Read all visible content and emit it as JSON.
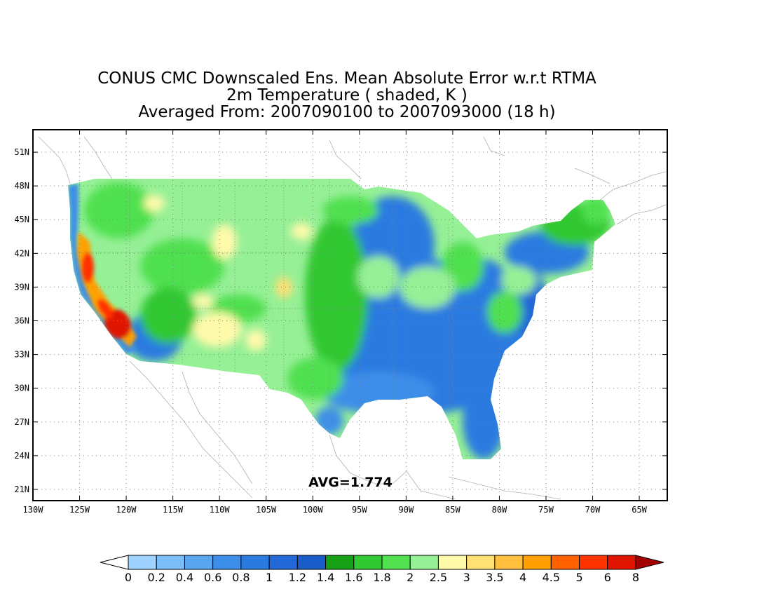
{
  "title": {
    "line1": "CONUS CMC Downscaled Ens. Mean Absolute Error w.r.t RTMA",
    "line2": "2m Temperature ( shaded, K )",
    "line3": "Averaged From: 2007090100 to 2007093000 (18 h)"
  },
  "avg_label": "AVG=1.774",
  "axes": {
    "lon_labels": [
      "130W",
      "125W",
      "120W",
      "115W",
      "110W",
      "105W",
      "100W",
      "95W",
      "90W",
      "85W",
      "80W",
      "75W",
      "70W",
      "65W"
    ],
    "lat_labels": [
      "51N",
      "48N",
      "45N",
      "42N",
      "39N",
      "36N",
      "33N",
      "30N",
      "27N",
      "24N",
      "21N"
    ],
    "lon_range": [
      -130,
      -62
    ],
    "lat_range": [
      20,
      53
    ]
  },
  "colorbar": {
    "levels": [
      "0",
      "0.2",
      "0.4",
      "0.6",
      "0.8",
      "1",
      "1.2",
      "1.4",
      "1.6",
      "1.8",
      "2",
      "2.5",
      "3",
      "3.5",
      "4",
      "4.5",
      "5",
      "6",
      "8"
    ],
    "colors": [
      "#ffffff",
      "#9fd3ff",
      "#7bbdf7",
      "#5aa5f0",
      "#3d8ee8",
      "#2a7ae0",
      "#2268d8",
      "#1a5cc8",
      "#16a016",
      "#32c832",
      "#50e050",
      "#96f096",
      "#fffaaa",
      "#ffe073",
      "#ffc040",
      "#ffa000",
      "#ff6000",
      "#ff3200",
      "#e11400",
      "#a50000"
    ]
  },
  "palette": {
    "ocean": "#ffffff",
    "frame": "#000000",
    "grid": "#7f7f7f"
  }
}
